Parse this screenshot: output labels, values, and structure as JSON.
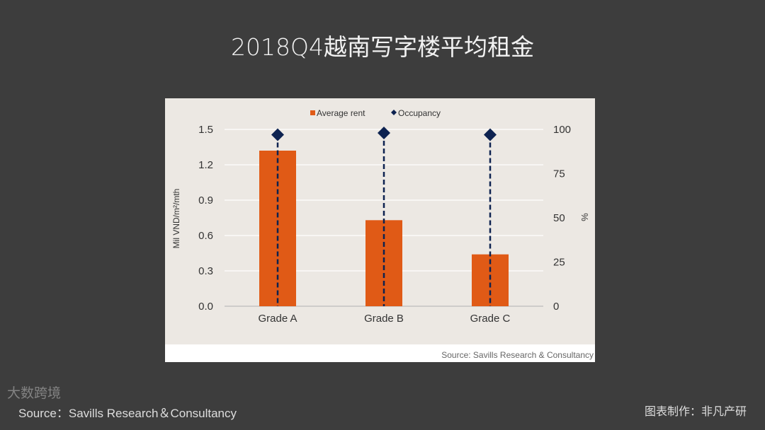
{
  "title": "2018Q4越南写字楼平均租金",
  "chart_data": {
    "type": "bar",
    "categories": [
      "Grade A",
      "Grade B",
      "Grade C"
    ],
    "series": [
      {
        "name": "Average rent",
        "type": "bar",
        "axis": "left",
        "color": "#e05a16",
        "values": [
          1.32,
          0.73,
          0.44
        ]
      },
      {
        "name": "Occupancy",
        "type": "scatter",
        "axis": "right",
        "color": "#0d2250",
        "values": [
          97,
          98,
          97
        ]
      }
    ],
    "ylabel": "Mil VND/m²/mth",
    "y2label": "%",
    "ylim": [
      0,
      1.5
    ],
    "y2lim": [
      0,
      100
    ],
    "yticks": [
      "0.0",
      "0.3",
      "0.6",
      "0.9",
      "1.2",
      "1.5"
    ],
    "y2ticks": [
      "0",
      "25",
      "50",
      "75",
      "100"
    ],
    "grid": true,
    "legend": "top-center",
    "source": "Source: Savills Research & Consultancy"
  },
  "footer": {
    "source": "Source：Savills Research＆Consultancy",
    "maker": "图表制作：非凡产研",
    "watermark": "大数跨境"
  }
}
